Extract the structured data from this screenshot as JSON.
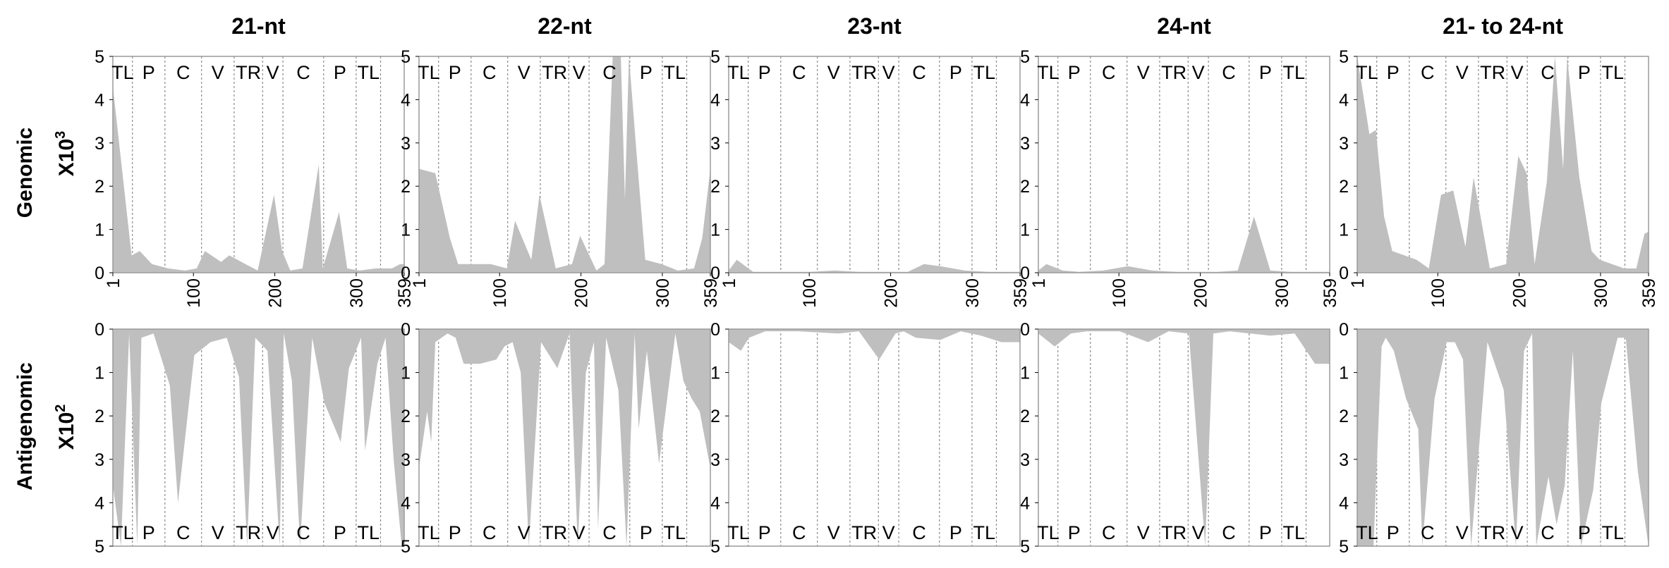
{
  "figure": {
    "row_labels": {
      "genomic": "Genomic",
      "genomic_scale": "X10",
      "genomic_exp": "3",
      "antigenomic": "Antigenomic",
      "antigenomic_scale": "X10",
      "antigenomic_exp": "2"
    },
    "colors": {
      "fill": "#bfbfbf",
      "frame": "#9a9a9a",
      "divider": "#8a8a8a"
    }
  },
  "chart_data": [
    {
      "type": "area",
      "title": "21-nt",
      "x_ticks": [
        "1",
        "100",
        "200",
        "300",
        "359"
      ],
      "regions": [
        "TL",
        "P",
        "C",
        "V",
        "TR",
        "V",
        "C",
        "P",
        "TL"
      ],
      "region_boundaries": [
        25,
        65,
        110,
        150,
        185,
        210,
        260,
        300,
        330
      ],
      "genomic": {
        "ylabel": "X10^3",
        "yticks": [
          "0",
          "1",
          "2",
          "3",
          "4",
          "5"
        ],
        "ylim": [
          0,
          5
        ],
        "x": [
          1,
          24,
          34,
          49,
          69,
          90,
          104,
          114,
          134,
          144,
          164,
          179,
          199,
          209,
          219,
          234,
          254,
          259,
          279,
          289,
          304,
          324,
          344,
          354,
          359
        ],
        "y": [
          4.3,
          0.4,
          0.5,
          0.2,
          0.1,
          0.05,
          0.1,
          0.5,
          0.25,
          0.4,
          0.2,
          0.05,
          1.8,
          0.5,
          0.05,
          0.1,
          2.5,
          0.1,
          1.4,
          0.1,
          0.05,
          0.1,
          0.1,
          0.2,
          0.2
        ]
      },
      "antigenomic": {
        "ylabel": "X10^2",
        "yticks": [
          "0",
          "1",
          "2",
          "3",
          "4",
          "5"
        ],
        "ylim": [
          0,
          5
        ],
        "x": [
          1,
          11,
          21,
          31,
          36,
          51,
          71,
          81,
          101,
          121,
          141,
          156,
          166,
          176,
          191,
          206,
          211,
          221,
          231,
          246,
          261,
          281,
          291,
          306,
          311,
          326,
          336,
          346,
          356,
          359
        ],
        "y": [
          3.6,
          5.0,
          0.1,
          5.0,
          0.2,
          0.1,
          1.3,
          4.0,
          0.6,
          0.3,
          0.2,
          1.1,
          5.0,
          0.2,
          0.5,
          5.0,
          0.1,
          1.2,
          5.0,
          0.2,
          1.7,
          2.6,
          0.9,
          0.2,
          2.8,
          0.8,
          0.2,
          3.0,
          5.0,
          5.0
        ]
      }
    },
    {
      "type": "area",
      "title": "22-nt",
      "x_ticks": [
        "1",
        "100",
        "200",
        "300",
        "359"
      ],
      "regions": [
        "TL",
        "P",
        "C",
        "V",
        "TR",
        "V",
        "C",
        "P",
        "TL"
      ],
      "region_boundaries": [
        25,
        65,
        110,
        150,
        185,
        210,
        260,
        300,
        330
      ],
      "genomic": {
        "ylabel": "X10^3",
        "yticks": [
          "0",
          "1",
          "2",
          "3",
          "4",
          "5"
        ],
        "ylim": [
          0,
          5
        ],
        "x": [
          1,
          21,
          39,
          49,
          69,
          89,
          109,
          119,
          139,
          149,
          169,
          189,
          199,
          219,
          229,
          239,
          249,
          254,
          259,
          269,
          279,
          299,
          319,
          339,
          349,
          359
        ],
        "y": [
          2.4,
          2.3,
          0.8,
          0.2,
          0.2,
          0.2,
          0.1,
          1.2,
          0.3,
          1.8,
          0.1,
          0.2,
          0.85,
          0.05,
          0.2,
          5.0,
          5.0,
          1.7,
          5.0,
          2.6,
          0.3,
          0.2,
          0.05,
          0.1,
          0.8,
          2.4
        ]
      },
      "antigenomic": {
        "ylabel": "X10^2",
        "yticks": [
          "0",
          "1",
          "2",
          "3",
          "4",
          "5"
        ],
        "ylim": [
          0,
          5
        ],
        "x": [
          1,
          11,
          16,
          21,
          36,
          46,
          56,
          76,
          96,
          106,
          116,
          126,
          136,
          151,
          171,
          186,
          196,
          206,
          216,
          221,
          231,
          246,
          256,
          266,
          271,
          281,
          296,
          316,
          326,
          336,
          346,
          359
        ],
        "y": [
          3.2,
          1.9,
          2.6,
          0.3,
          0.1,
          0.2,
          0.8,
          0.8,
          0.7,
          0.4,
          0.3,
          1.0,
          5.0,
          0.3,
          0.9,
          0.1,
          5.0,
          1.0,
          0.3,
          4.6,
          0.2,
          1.4,
          5.0,
          0.1,
          2.3,
          0.5,
          3.1,
          0.1,
          1.2,
          1.6,
          1.9,
          3.2
        ]
      }
    },
    {
      "type": "area",
      "title": "23-nt",
      "x_ticks": [
        "1",
        "100",
        "200",
        "300",
        "359"
      ],
      "regions": [
        "TL",
        "P",
        "C",
        "V",
        "TR",
        "V",
        "C",
        "P",
        "TL"
      ],
      "region_boundaries": [
        25,
        65,
        110,
        150,
        185,
        210,
        260,
        300,
        330
      ],
      "genomic": {
        "ylabel": "X10^3",
        "yticks": [
          "0",
          "1",
          "2",
          "3",
          "4",
          "5"
        ],
        "ylim": [
          0,
          5
        ],
        "x": [
          1,
          11,
          31,
          61,
          101,
          131,
          161,
          191,
          221,
          241,
          261,
          291,
          321,
          359
        ],
        "y": [
          0.05,
          0.3,
          0.02,
          0.02,
          0.02,
          0.05,
          0.02,
          0.02,
          0.02,
          0.2,
          0.15,
          0.05,
          0.02,
          0.02
        ]
      },
      "antigenomic": {
        "ylabel": "X10^2",
        "yticks": [
          "0",
          "1",
          "2",
          "3",
          "4",
          "5"
        ],
        "ylim": [
          0,
          5
        ],
        "x": [
          1,
          16,
          26,
          46,
          86,
          136,
          161,
          186,
          206,
          216,
          231,
          261,
          286,
          311,
          336,
          359
        ],
        "y": [
          0.3,
          0.5,
          0.2,
          0.05,
          0.05,
          0.1,
          0.05,
          0.7,
          0.1,
          0.05,
          0.2,
          0.25,
          0.05,
          0.15,
          0.3,
          0.3
        ]
      }
    },
    {
      "type": "area",
      "title": "24-nt",
      "x_ticks": [
        "1",
        "100",
        "200",
        "300",
        "359"
      ],
      "regions": [
        "TL",
        "P",
        "C",
        "V",
        "TR",
        "V",
        "C",
        "P",
        "TL"
      ],
      "region_boundaries": [
        25,
        65,
        110,
        150,
        185,
        210,
        260,
        300,
        330
      ],
      "genomic": {
        "ylabel": "X10^3",
        "yticks": [
          "0",
          "1",
          "2",
          "3",
          "4",
          "5"
        ],
        "ylim": [
          0,
          5
        ],
        "x": [
          1,
          11,
          31,
          51,
          81,
          111,
          141,
          171,
          191,
          221,
          246,
          266,
          286,
          311,
          359
        ],
        "y": [
          0.05,
          0.2,
          0.05,
          0.02,
          0.05,
          0.15,
          0.05,
          0.02,
          0.02,
          0.02,
          0.05,
          1.3,
          0.05,
          0.02,
          0.02
        ]
      },
      "antigenomic": {
        "ylabel": "X10^2",
        "yticks": [
          "0",
          "1",
          "2",
          "3",
          "4",
          "5"
        ],
        "ylim": [
          0,
          5
        ],
        "x": [
          1,
          21,
          41,
          61,
          101,
          136,
          161,
          186,
          206,
          216,
          236,
          261,
          286,
          316,
          341,
          359
        ],
        "y": [
          0.1,
          0.4,
          0.1,
          0.05,
          0.05,
          0.3,
          0.05,
          0.1,
          5.0,
          0.1,
          0.05,
          0.1,
          0.15,
          0.1,
          0.8,
          0.8
        ]
      }
    },
    {
      "type": "area",
      "title": "21- to 24-nt",
      "x_ticks": [
        "1",
        "100",
        "200",
        "300",
        "359"
      ],
      "regions": [
        "TL",
        "P",
        "C",
        "V",
        "TR",
        "V",
        "C",
        "P",
        "TL"
      ],
      "region_boundaries": [
        25,
        65,
        110,
        150,
        185,
        210,
        260,
        300,
        330
      ],
      "genomic": {
        "ylabel": "X10^3",
        "yticks": [
          "0",
          "1",
          "2",
          "3",
          "4",
          "5"
        ],
        "ylim": [
          0,
          5
        ],
        "x": [
          1,
          16,
          24,
          34,
          44,
          59,
          74,
          89,
          104,
          119,
          134,
          144,
          164,
          184,
          199,
          209,
          219,
          234,
          244,
          254,
          259,
          274,
          289,
          299,
          314,
          329,
          344,
          354,
          359
        ],
        "y": [
          5.0,
          3.2,
          3.3,
          1.3,
          0.5,
          0.4,
          0.3,
          0.1,
          1.8,
          1.9,
          0.6,
          2.2,
          0.1,
          0.2,
          2.7,
          2.3,
          0.2,
          2.1,
          5.0,
          2.4,
          5.0,
          2.2,
          0.5,
          0.3,
          0.2,
          0.1,
          0.1,
          0.9,
          0.95
        ]
      },
      "antigenomic": {
        "ylabel": "X10^2",
        "yticks": [
          "0",
          "1",
          "2",
          "3",
          "4",
          "5"
        ],
        "ylim": [
          0,
          5
        ],
        "x": [
          1,
          11,
          21,
          31,
          36,
          46,
          61,
          76,
          81,
          96,
          111,
          121,
          131,
          141,
          161,
          181,
          196,
          206,
          216,
          221,
          236,
          246,
          256,
          266,
          276,
          291,
          301,
          321,
          331,
          346,
          359
        ],
        "y": [
          5.0,
          5.0,
          5.0,
          0.4,
          0.2,
          0.5,
          1.6,
          2.3,
          5.0,
          1.6,
          0.3,
          0.3,
          0.7,
          5.0,
          0.3,
          1.4,
          5.0,
          0.5,
          0.1,
          5.0,
          3.4,
          4.5,
          3.6,
          0.5,
          5.0,
          3.7,
          1.7,
          0.2,
          0.2,
          3.3,
          5.0
        ]
      }
    }
  ]
}
